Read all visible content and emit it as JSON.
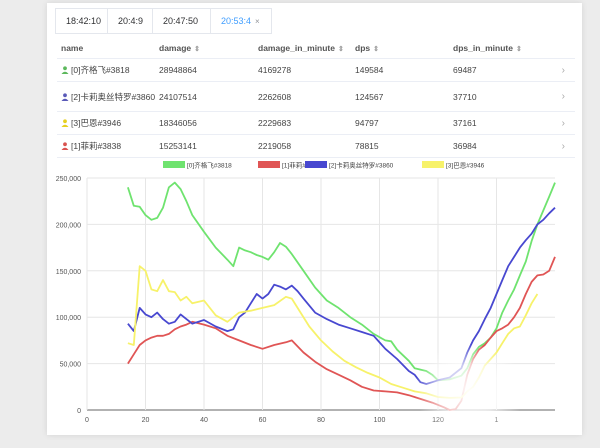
{
  "tabs": [
    {
      "label": "18:42:10"
    },
    {
      "label": "20:4:9"
    },
    {
      "label": "20:47:50"
    },
    {
      "label": "20:53:4",
      "close": "×"
    }
  ],
  "table": {
    "headers": [
      "name",
      "damage",
      "damage_in_minute",
      "dps",
      "dps_in_minute"
    ],
    "sort_icon": "⇕",
    "rows": [
      {
        "name": "[0]齐格飞#3818",
        "damage": "28948864",
        "damage_in_minute": "4169278",
        "dps": "149584",
        "dps_in_minute": "69487",
        "icon_color": "#5cb85c"
      },
      {
        "name": "[2]卡莉奥丝特罗#3860",
        "damage": "24107514",
        "damage_in_minute": "2262608",
        "dps": "124567",
        "dps_in_minute": "37710",
        "icon_color": "#5a5ab8"
      },
      {
        "name": "[3]巴恩#3946",
        "damage": "18346056",
        "damage_in_minute": "2229683",
        "dps": "94797",
        "dps_in_minute": "37161",
        "icon_color": "#e6d020"
      },
      {
        "name": "[1]菲莉#3838",
        "damage": "15253141",
        "damage_in_minute": "2219058",
        "dps": "78815",
        "dps_in_minute": "36984",
        "icon_color": "#d9534f"
      }
    ],
    "row_chevron": "›"
  },
  "chart_data": {
    "type": "line",
    "xlim": [
      0,
      160
    ],
    "ylim": [
      0,
      250000
    ],
    "xticks": [
      "0",
      "20",
      "40",
      "60",
      "80",
      "100",
      "120",
      "1"
    ],
    "yticks": [
      "0",
      "50,000",
      "100,000",
      "150,000",
      "200,000",
      "250,000"
    ],
    "grid": true,
    "legend_position": "top-center",
    "series": [
      {
        "name": "[0]齐格飞#3818",
        "color": "#6fe36f",
        "x": [
          14,
          16,
          18,
          20,
          22,
          24,
          26,
          28,
          30,
          32,
          34,
          36,
          40,
          44,
          48,
          50,
          52,
          54,
          56,
          58,
          60,
          62,
          64,
          66,
          68,
          70,
          74,
          78,
          82,
          86,
          90,
          94,
          98,
          102,
          104,
          106,
          110,
          112,
          116,
          118,
          120,
          124,
          128,
          130,
          132,
          134,
          136,
          138,
          140,
          142,
          144,
          146,
          148,
          150,
          152,
          154,
          156,
          158,
          160
        ],
        "y": [
          240000,
          220000,
          219000,
          210000,
          205000,
          207000,
          218000,
          240000,
          245000,
          238000,
          225000,
          210000,
          192000,
          175000,
          162000,
          155000,
          175000,
          172000,
          170000,
          167000,
          165000,
          162000,
          170000,
          180000,
          176000,
          168000,
          150000,
          132000,
          118000,
          110000,
          100000,
          92000,
          82000,
          75000,
          74000,
          65000,
          53000,
          45000,
          42000,
          38000,
          32000,
          33000,
          37000,
          45000,
          60000,
          68000,
          72000,
          78000,
          88000,
          105000,
          118000,
          130000,
          145000,
          160000,
          182000,
          200000,
          215000,
          230000,
          245000
        ]
      },
      {
        "name": "[1]菲莉#3838",
        "color": "#e05555",
        "x": [
          14,
          16,
          18,
          20,
          22,
          24,
          26,
          28,
          30,
          32,
          34,
          36,
          40,
          44,
          48,
          52,
          56,
          60,
          64,
          68,
          70,
          74,
          78,
          82,
          86,
          90,
          94,
          98,
          102,
          106,
          110,
          114,
          118,
          122,
          124,
          126,
          128,
          130,
          132,
          134,
          136,
          138,
          140,
          142,
          144,
          146,
          148,
          150,
          152,
          154,
          156,
          158,
          160
        ],
        "y": [
          50000,
          60000,
          70000,
          75000,
          78000,
          80000,
          80000,
          82000,
          87000,
          90000,
          92000,
          95000,
          92000,
          88000,
          80000,
          75000,
          70000,
          66000,
          70000,
          73000,
          75000,
          62000,
          52000,
          44000,
          38000,
          32000,
          25000,
          21000,
          20000,
          19000,
          16000,
          12000,
          8000,
          3000,
          0,
          1000,
          10000,
          38000,
          55000,
          65000,
          70000,
          78000,
          85000,
          88000,
          92000,
          100000,
          110000,
          125000,
          138000,
          145000,
          146000,
          150000,
          165000
        ]
      },
      {
        "name": "[2]卡莉奥丝特罗#3860",
        "color": "#4848d0",
        "x": [
          14,
          16,
          18,
          20,
          22,
          24,
          26,
          28,
          30,
          32,
          34,
          36,
          40,
          44,
          48,
          50,
          52,
          54,
          56,
          58,
          60,
          62,
          64,
          66,
          68,
          70,
          72,
          74,
          78,
          82,
          86,
          90,
          94,
          98,
          102,
          106,
          110,
          112,
          114,
          116,
          118,
          120,
          124,
          128,
          130,
          132,
          134,
          136,
          138,
          140,
          142,
          144,
          146,
          148,
          150,
          152,
          154,
          156,
          158,
          160
        ],
        "y": [
          93000,
          85000,
          110000,
          103000,
          100000,
          105000,
          98000,
          93000,
          95000,
          103000,
          98000,
          93000,
          97000,
          90000,
          85000,
          87000,
          100000,
          105000,
          115000,
          125000,
          120000,
          125000,
          135000,
          133000,
          130000,
          134000,
          128000,
          120000,
          105000,
          98000,
          92000,
          88000,
          84000,
          80000,
          66000,
          55000,
          42000,
          38000,
          30000,
          28000,
          30000,
          32000,
          35000,
          45000,
          62000,
          75000,
          85000,
          98000,
          110000,
          125000,
          140000,
          155000,
          165000,
          175000,
          183000,
          190000,
          200000,
          205000,
          212000,
          218000
        ]
      },
      {
        "name": "[3]巴恩#3946",
        "color": "#f7f26a",
        "x": [
          14,
          16,
          18,
          20,
          22,
          24,
          26,
          28,
          30,
          32,
          34,
          36,
          40,
          44,
          48,
          52,
          56,
          60,
          64,
          68,
          70,
          72,
          76,
          80,
          84,
          88,
          92,
          96,
          100,
          104,
          108,
          112,
          116,
          120,
          124,
          128,
          130,
          132,
          134,
          136,
          138,
          140,
          142,
          144,
          146,
          148,
          150,
          152,
          154
        ],
        "y": [
          72000,
          70000,
          155000,
          150000,
          130000,
          128000,
          140000,
          128000,
          127000,
          118000,
          122000,
          115000,
          118000,
          102000,
          95000,
          105000,
          107000,
          110000,
          113000,
          122000,
          120000,
          110000,
          90000,
          75000,
          63000,
          53000,
          46000,
          40000,
          35000,
          28000,
          24000,
          20000,
          18000,
          14000,
          13000,
          13500,
          20000,
          25000,
          35000,
          48000,
          55000,
          62000,
          72000,
          82000,
          88000,
          90000,
          102000,
          115000,
          125000
        ]
      }
    ]
  }
}
